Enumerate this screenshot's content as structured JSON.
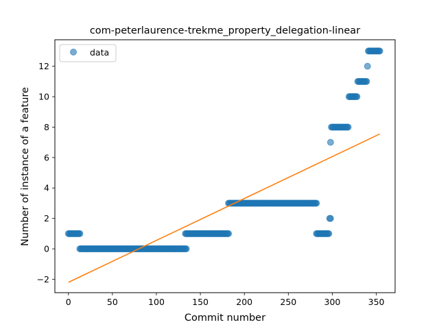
{
  "chart_data": {
    "type": "scatter",
    "title": "com-peterlaurence-trekme_property_delegation-linear",
    "xlabel": "Commit number",
    "ylabel": "Number of instance of a feature",
    "xlim": [
      -15.4,
      371.4
    ],
    "ylim": [
      -2.88,
      13.74
    ],
    "xticks": [
      0,
      50,
      100,
      150,
      200,
      250,
      300,
      350
    ],
    "yticks": [
      -2,
      0,
      2,
      4,
      6,
      8,
      10,
      12
    ],
    "xtick_labels": [
      "0",
      "50",
      "100",
      "150",
      "200",
      "250",
      "300",
      "350"
    ],
    "ytick_labels": [
      "−2",
      "0",
      "2",
      "4",
      "6",
      "8",
      "10",
      "12"
    ],
    "legend": {
      "position": "top-left",
      "entries": [
        "data"
      ]
    },
    "grid": false,
    "colors": {
      "points": "#1f77b4",
      "fit": "#ff7f0e"
    },
    "series": [
      {
        "name": "data",
        "kind": "scatter",
        "segments": [
          {
            "x_from": 0,
            "x_to": 13,
            "y": 1
          },
          {
            "x_from": 13,
            "x_to": 134,
            "y": 0
          },
          {
            "x_from": 133,
            "x_to": 182,
            "y": 1
          },
          {
            "x_from": 182,
            "x_to": 282,
            "y": 3
          },
          {
            "x_from": 282,
            "x_to": 296,
            "y": 1
          },
          {
            "x_from": 297,
            "x_to": 298,
            "y": 2
          },
          {
            "x_from": 298,
            "x_to": 298,
            "y": 7
          },
          {
            "x_from": 299,
            "x_to": 318,
            "y": 8
          },
          {
            "x_from": 319,
            "x_to": 328,
            "y": 10
          },
          {
            "x_from": 329,
            "x_to": 339,
            "y": 11
          },
          {
            "x_from": 340,
            "x_to": 340,
            "y": 12
          },
          {
            "x_from": 341,
            "x_to": 354,
            "y": 13
          }
        ]
      },
      {
        "kind": "line",
        "x": [
          0,
          354
        ],
        "y": [
          -2.2,
          7.55
        ]
      }
    ]
  }
}
